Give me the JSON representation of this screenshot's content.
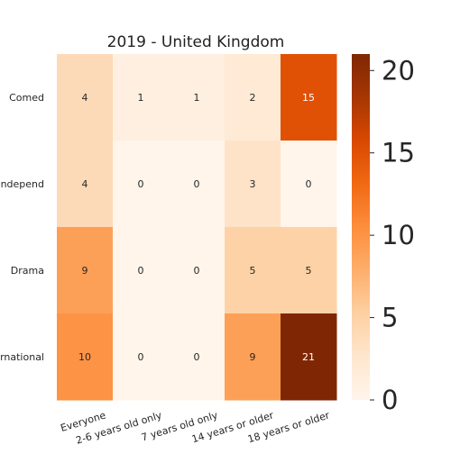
{
  "chart_data": {
    "type": "heatmap",
    "title": "2019 - United Kingdom",
    "xlabel": "",
    "ylabel": "",
    "x_categories": [
      "Everyone",
      "2-6 years old only",
      "7 years old only",
      "14 years or older",
      "18 years or older"
    ],
    "y_categories": [
      "Comed",
      "Independ",
      "Drama",
      "ernational"
    ],
    "values": [
      [
        4,
        1,
        1,
        2,
        15
      ],
      [
        4,
        0,
        0,
        3,
        0
      ],
      [
        9,
        0,
        0,
        5,
        5
      ],
      [
        10,
        0,
        0,
        9,
        21
      ]
    ],
    "colorbar": {
      "min": 0,
      "max": 21,
      "ticks": [
        0,
        5,
        10,
        15,
        20
      ],
      "tick_labels": [
        "0",
        "5",
        "10",
        "15",
        "20"
      ],
      "colormap": "Oranges"
    },
    "colors": {
      "low": "#fff5eb",
      "mid": "#fd8d3c",
      "high": "#7f2704"
    },
    "grid": false,
    "legend": "right"
  }
}
